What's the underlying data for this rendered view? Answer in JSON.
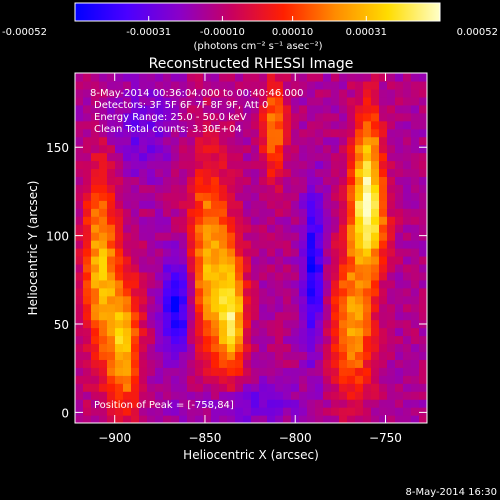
{
  "chart_data": {
    "type": "heatmap",
    "title": "Reconstructed RHESSI Image",
    "xlabel": "Heliocentric X (arcsec)",
    "ylabel": "Heliocentric Y (arcsec)",
    "xlim": [
      -922,
      -727
    ],
    "ylim": [
      -6,
      192
    ],
    "x_ticks": [
      -900,
      -850,
      -800,
      -750
    ],
    "y_ticks": [
      0,
      50,
      100,
      150
    ],
    "colorbar": {
      "ticks": [
        -0.00052,
        -0.00031,
        -0.0001,
        0.0001,
        0.00031,
        0.00052
      ],
      "tick_labels": [
        "-0.00052",
        "-0.00031",
        "-0.00010",
        "0.00010",
        "0.00031",
        "0.00052"
      ],
      "range": [
        -0.00052,
        0.00052
      ],
      "units": "(photons cm⁻² s⁻¹ asec⁻²)",
      "colormap": [
        "#0000ff",
        "#4b00ff",
        "#8a00c8",
        "#c80060",
        "#ff2000",
        "#ff8c00",
        "#ffdc00",
        "#ffffc8"
      ]
    },
    "annotations": [
      "8-May-2014 00:36:04.000  to 00:40:46.000",
      "Detectors: 3F 5F 6F 7F 8F 9F, Att 0",
      "Energy Range: 25.0 - 50.0 keV",
      "Clean    Total counts: 3.30E+04"
    ],
    "peak_label": "Position of Peak = [-758,84]",
    "features": [
      {
        "x": -908,
        "y": 85,
        "value": 0.00038,
        "width": 9,
        "height": 55
      },
      {
        "x": -895,
        "y": 40,
        "value": 0.0004,
        "width": 9,
        "height": 40
      },
      {
        "x": -848,
        "y": 85,
        "value": 0.00036,
        "width": 12,
        "height": 60
      },
      {
        "x": -835,
        "y": 55,
        "value": 0.00042,
        "width": 8,
        "height": 35
      },
      {
        "x": -760,
        "y": 110,
        "value": 0.00052,
        "width": 10,
        "height": 30
      },
      {
        "x": -768,
        "y": 50,
        "value": 0.00035,
        "width": 12,
        "height": 40
      },
      {
        "x": -760,
        "y": 150,
        "value": 0.0003,
        "width": 8,
        "height": 30
      },
      {
        "x": -812,
        "y": 162,
        "value": 0.00028,
        "width": 7,
        "height": 30
      },
      {
        "x": -865,
        "y": 60,
        "value": -0.00045,
        "width": 8,
        "height": 30
      },
      {
        "x": -790,
        "y": 80,
        "value": -0.0004,
        "width": 6,
        "height": 45
      },
      {
        "x": -830,
        "y": 5,
        "value": -0.00022,
        "width": 30,
        "height": 12
      },
      {
        "x": -885,
        "y": 160,
        "value": -0.0002,
        "width": 18,
        "height": 25
      }
    ],
    "background_value": -0.00014
  },
  "footer": {
    "timestamp": "8-May-2014 16:30"
  }
}
